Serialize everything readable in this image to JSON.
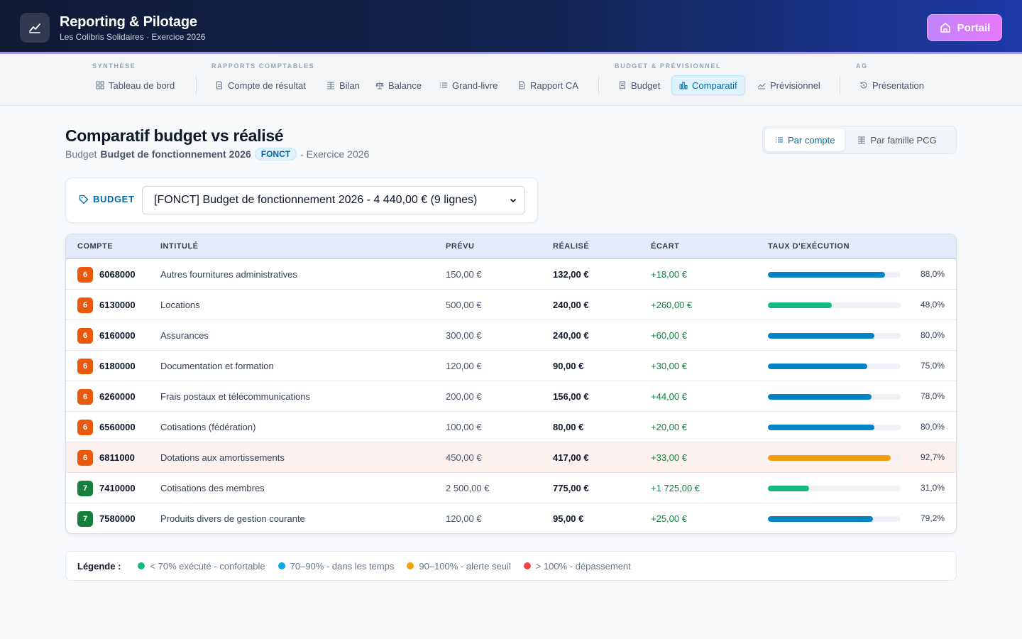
{
  "app": {
    "title": "Reporting & Pilotage",
    "subtitle": "Les Colibris Solidaires · Exercice 2026",
    "portal_label": "Portail"
  },
  "nav": {
    "groups": [
      {
        "label": "SYNTHÈSE"
      },
      {
        "label": "RAPPORTS COMPTABLES"
      },
      {
        "label": "BUDGET & PRÉVISIONNEL"
      },
      {
        "label": "AG"
      }
    ],
    "items": [
      {
        "label": "Tableau de bord",
        "icon": "grid-icon"
      },
      {
        "label": "Compte de résultat",
        "icon": "document-icon"
      },
      {
        "label": "Bilan",
        "icon": "columns-icon"
      },
      {
        "label": "Balance",
        "icon": "scale-icon"
      },
      {
        "label": "Grand-livre",
        "icon": "list-icon"
      },
      {
        "label": "Rapport CA",
        "icon": "document-icon"
      },
      {
        "label": "Budget",
        "icon": "receipt-icon"
      },
      {
        "label": "Comparatif",
        "icon": "bar-chart-icon",
        "active": true
      },
      {
        "label": "Prévisionnel",
        "icon": "trend-icon"
      },
      {
        "label": "Présentation",
        "icon": "history-icon"
      }
    ]
  },
  "page": {
    "title": "Comparatif budget vs réalisé",
    "sub_prefix": "Budget",
    "budget_name": "Budget de fonctionnement 2026",
    "budget_code": "FONCT",
    "sub_suffix": "- Exercice 2026"
  },
  "view_toggle": {
    "by_account": "Par compte",
    "by_family": "Par famille PCG"
  },
  "budget_select": {
    "label": "BUDGET",
    "value": "[FONCT] Budget de fonctionnement 2026 - 4 440,00 € (9 lignes)"
  },
  "table": {
    "headers": {
      "compte": "COMPTE",
      "intitule": "INTITULÉ",
      "prevu": "PRÉVU",
      "realise": "RÉALISÉ",
      "ecart": "ÉCART",
      "taux": "TAUX D'EXÉCUTION"
    },
    "rows": [
      {
        "classe": "6",
        "compte": "6068000",
        "intitule": "Autres fournitures administratives",
        "prevu": "150,00 €",
        "realise": "132,00 €",
        "ecart": "+18,00 €",
        "taux": "88,0%",
        "taux_value": 88.0,
        "status": "blue"
      },
      {
        "classe": "6",
        "compte": "6130000",
        "intitule": "Locations",
        "prevu": "500,00 €",
        "realise": "240,00 €",
        "ecart": "+260,00 €",
        "taux": "48,0%",
        "taux_value": 48.0,
        "status": "green"
      },
      {
        "classe": "6",
        "compte": "6160000",
        "intitule": "Assurances",
        "prevu": "300,00 €",
        "realise": "240,00 €",
        "ecart": "+60,00 €",
        "taux": "80,0%",
        "taux_value": 80.0,
        "status": "blue"
      },
      {
        "classe": "6",
        "compte": "6180000",
        "intitule": "Documentation et formation",
        "prevu": "120,00 €",
        "realise": "90,00 €",
        "ecart": "+30,00 €",
        "taux": "75,0%",
        "taux_value": 75.0,
        "status": "blue"
      },
      {
        "classe": "6",
        "compte": "6260000",
        "intitule": "Frais postaux et télécommunications",
        "prevu": "200,00 €",
        "realise": "156,00 €",
        "ecart": "+44,00 €",
        "taux": "78,0%",
        "taux_value": 78.0,
        "status": "blue"
      },
      {
        "classe": "6",
        "compte": "6560000",
        "intitule": "Cotisations (fédération)",
        "prevu": "100,00 €",
        "realise": "80,00 €",
        "ecart": "+20,00 €",
        "taux": "80,0%",
        "taux_value": 80.0,
        "status": "blue"
      },
      {
        "classe": "6",
        "compte": "6811000",
        "intitule": "Dotations aux amortissements",
        "prevu": "450,00 €",
        "realise": "417,00 €",
        "ecart": "+33,00 €",
        "taux": "92,7%",
        "taux_value": 92.7,
        "status": "orange"
      },
      {
        "classe": "7",
        "compte": "7410000",
        "intitule": "Cotisations des membres",
        "prevu": "2 500,00 €",
        "realise": "775,00 €",
        "ecart": "+1 725,00 €",
        "taux": "31,0%",
        "taux_value": 31.0,
        "status": "green"
      },
      {
        "classe": "7",
        "compte": "7580000",
        "intitule": "Produits divers de gestion courante",
        "prevu": "120,00 €",
        "realise": "95,00 €",
        "ecart": "+25,00 €",
        "taux": "79,2%",
        "taux_value": 79.2,
        "status": "blue"
      }
    ]
  },
  "legend": {
    "title": "Légende :",
    "items": [
      {
        "label": "< 70% exécuté - confortable",
        "color": "#10b981"
      },
      {
        "label": "70–90% - dans les temps",
        "color": "#0ea5e9"
      },
      {
        "label": "90–100% - alerte seuil",
        "color": "#f59e0b"
      },
      {
        "label": "> 100% - dépassement",
        "color": "#ef4444"
      }
    ]
  },
  "colors": {
    "class6": "#ea580c",
    "class7": "#15803d",
    "bar_blue": "#0284c7",
    "bar_green": "#10b981",
    "bar_orange": "#f59e0b"
  }
}
